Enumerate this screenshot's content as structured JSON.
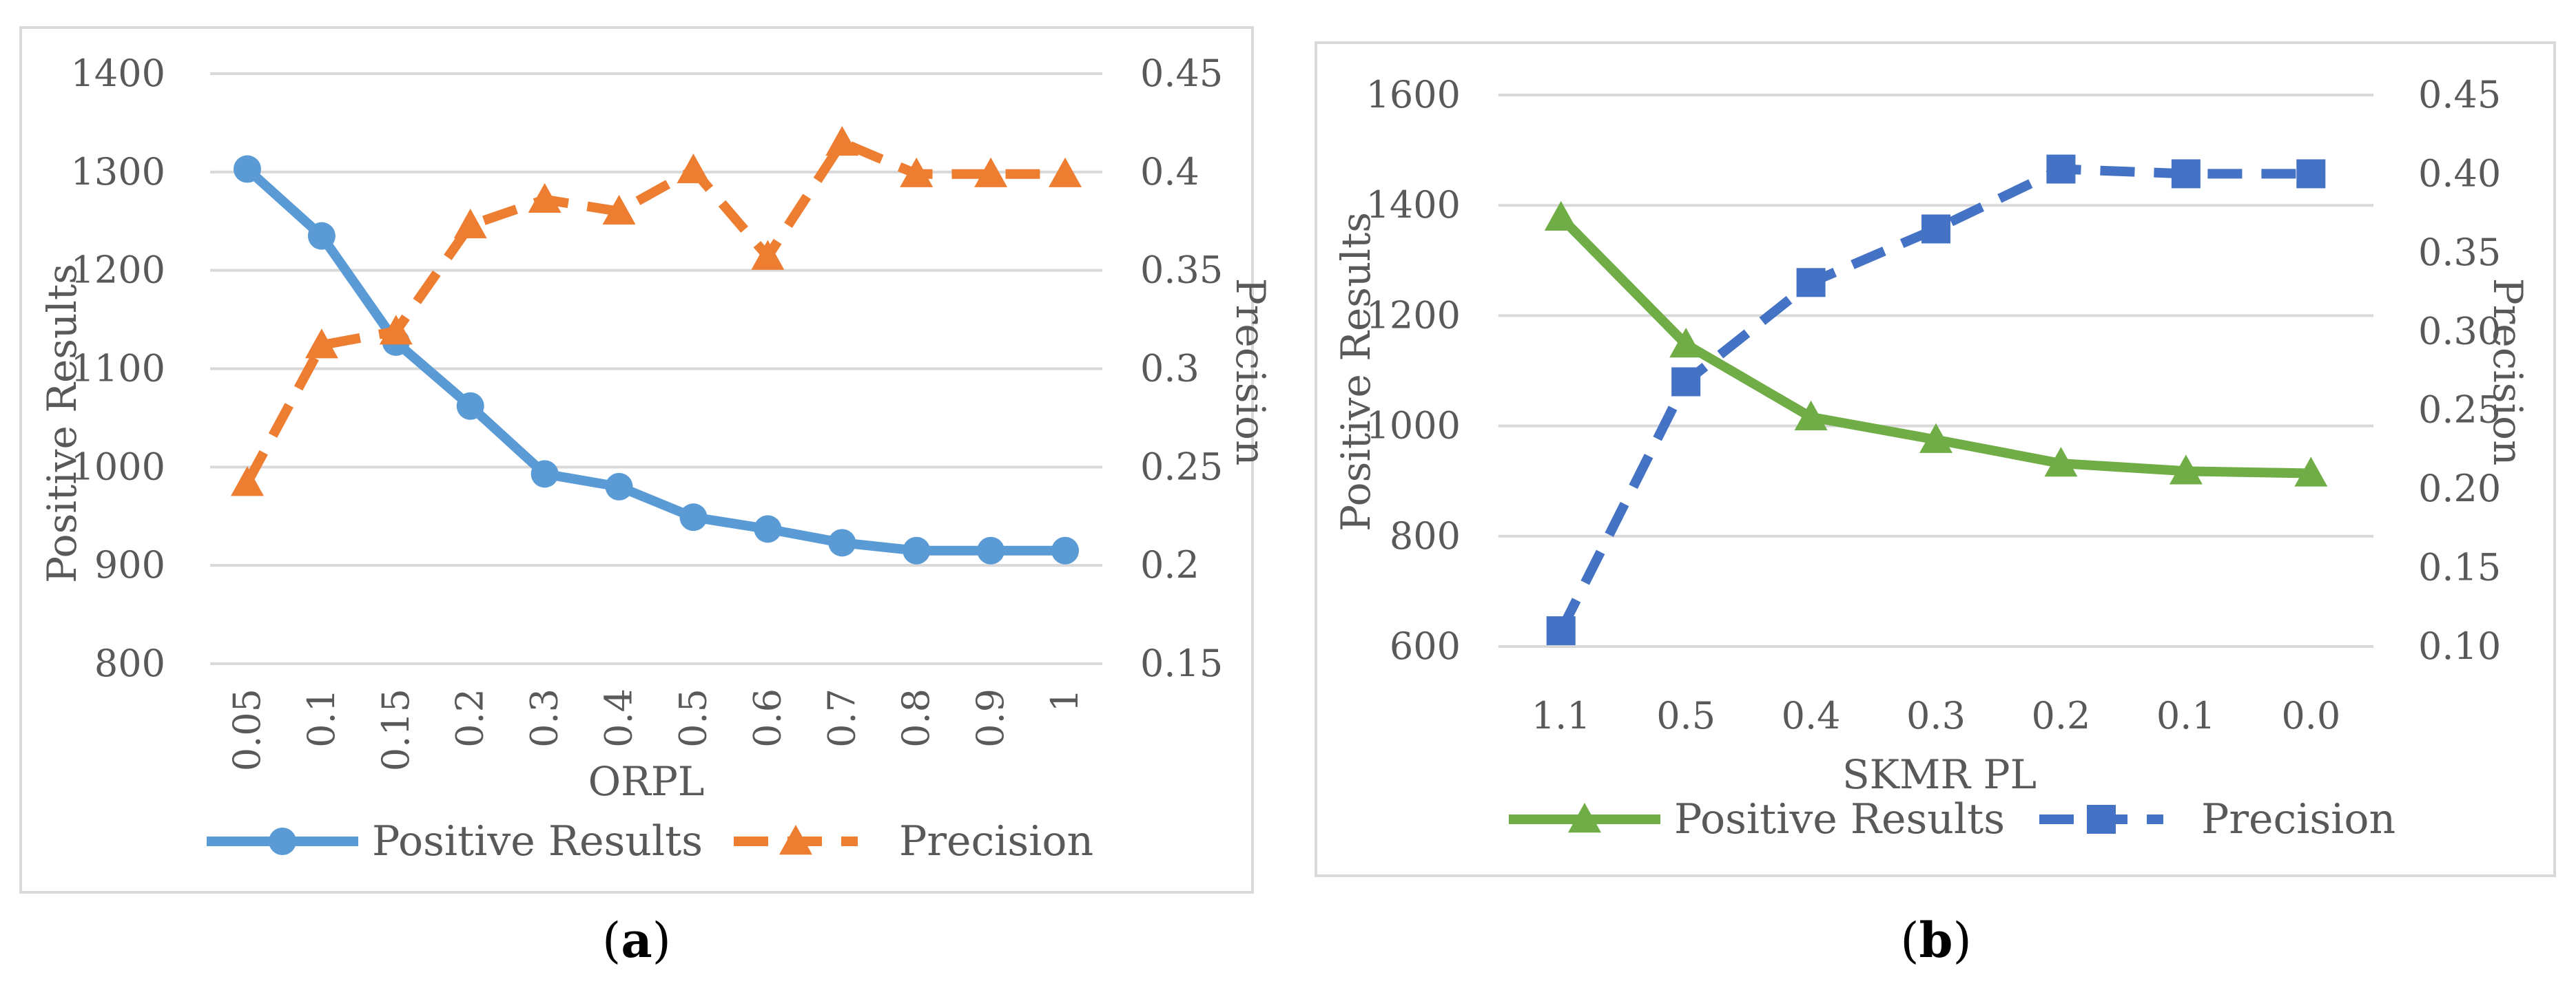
{
  "chart_data": [
    {
      "panel_label": "a",
      "type": "line",
      "xlabel": "ORPL",
      "ylabel": "Positive Results",
      "y2label": "Precision",
      "categories": [
        "0.05",
        "0.1",
        "0.15",
        "0.2",
        "0.3",
        "0.4",
        "0.5",
        "0.6",
        "0.7",
        "0.8",
        "0.9",
        "1"
      ],
      "ylim": [
        800,
        1400
      ],
      "y_ticks": [
        "800",
        "900",
        "1000",
        "1100",
        "1200",
        "1300",
        "1400"
      ],
      "y2lim": [
        0.15,
        0.45
      ],
      "y2_ticks": [
        "0.15",
        "0.2",
        "0.25",
        "0.3",
        "0.35",
        "0.4",
        "0.45"
      ],
      "grid": true,
      "legend_position": "bottom",
      "series": [
        {
          "name": "Positive Results",
          "axis": "left",
          "color": "#5b9bd5",
          "style": "solid",
          "marker": "circle",
          "values": [
            1303,
            1235,
            1127,
            1062,
            993,
            980,
            949,
            937,
            923,
            915,
            915,
            915
          ]
        },
        {
          "name": "Precision",
          "axis": "right",
          "color": "#ed7d31",
          "style": "dashed",
          "marker": "triangle",
          "values": [
            0.242,
            0.312,
            0.319,
            0.373,
            0.386,
            0.38,
            0.401,
            0.357,
            0.415,
            0.399,
            0.399,
            0.399
          ]
        }
      ]
    },
    {
      "panel_label": "b",
      "type": "line",
      "xlabel": "SKMR PL",
      "ylabel": "Positive Results",
      "y2label": "Precision",
      "categories": [
        "1.1",
        "0.5",
        "0.4",
        "0.3",
        "0.2",
        "0.1",
        "0.0"
      ],
      "ylim": [
        600,
        1600
      ],
      "y_ticks": [
        "600",
        "800",
        "1000",
        "1200",
        "1400",
        "1600"
      ],
      "y2lim": [
        0.1,
        0.45
      ],
      "y2_ticks": [
        "0.10",
        "0.15",
        "0.20",
        "0.25",
        "0.30",
        "0.35",
        "0.40",
        "0.45"
      ],
      "grid": true,
      "legend_position": "bottom",
      "series": [
        {
          "name": "Positive Results",
          "axis": "left",
          "color": "#70ad47",
          "style": "solid",
          "marker": "triangle",
          "values": [
            1378,
            1148,
            1016,
            975,
            932,
            918,
            914
          ]
        },
        {
          "name": "Precision",
          "axis": "right",
          "color": "#4472c4",
          "style": "dashed",
          "marker": "square",
          "values": [
            0.11,
            0.268,
            0.331,
            0.365,
            0.403,
            0.4,
            0.4
          ]
        }
      ]
    }
  ]
}
